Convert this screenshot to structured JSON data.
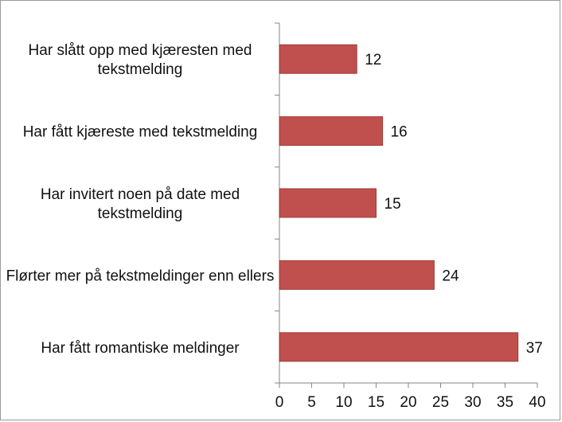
{
  "chart_data": {
    "type": "bar",
    "orientation": "horizontal",
    "title": "",
    "xlabel": "",
    "ylabel": "",
    "categories": [
      [
        "Har slått opp med kjæresten med",
        "tekstmelding"
      ],
      [
        "Har fått kjæreste med tekstmelding"
      ],
      [
        "Har invitert noen på date med",
        "tekstmelding"
      ],
      [
        "Flørter mer på tekstmeldinger enn ellers"
      ],
      [
        "Har fått romantiske meldinger"
      ]
    ],
    "values": [
      12,
      16,
      15,
      24,
      37
    ],
    "xlim": [
      0,
      40
    ],
    "xticks": [
      0,
      5,
      10,
      15,
      20,
      25,
      30,
      35,
      40
    ],
    "grid": false,
    "legend": "none",
    "bar_color": "#c0504d",
    "bar_edge_color": "#a03a37"
  }
}
